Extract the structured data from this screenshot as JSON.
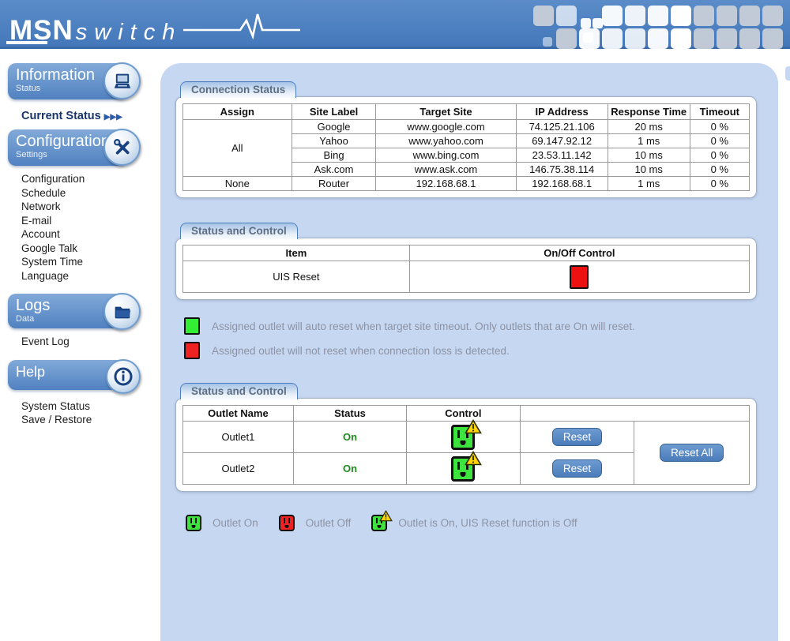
{
  "banner": {
    "logo_bold": "MSN",
    "logo_italic": "switch"
  },
  "sidebar": {
    "information": {
      "title": "Information",
      "subtitle": "Status"
    },
    "current_status_link": "Current Status",
    "current_status_arrows": "▶▶▶",
    "configuration": {
      "title": "Configuration",
      "subtitle": "Settings"
    },
    "config_links": [
      "Configuration",
      "Schedule",
      "Network",
      "E-mail",
      "Account",
      "Google Talk",
      "System Time",
      "Language"
    ],
    "logs": {
      "title": "Logs",
      "subtitle": "Data"
    },
    "logs_links": [
      "Event Log"
    ],
    "help": {
      "title": "Help"
    },
    "help_links": [
      "System Status",
      "Save / Restore"
    ]
  },
  "connection": {
    "tab_label": "Connection Status",
    "headers": [
      "Assign",
      "Site Label",
      "Target Site",
      "IP Address",
      "Response Time",
      "Timeout"
    ],
    "assign_all": "All",
    "assign_none": "None",
    "rows": [
      {
        "site_label": "Google",
        "target": "www.google.com",
        "ip": "74.125.21.106",
        "response": "20 ms",
        "timeout": "0 %"
      },
      {
        "site_label": "Yahoo",
        "target": "www.yahoo.com",
        "ip": "69.147.92.12",
        "response": "1 ms",
        "timeout": "0 %"
      },
      {
        "site_label": "Bing",
        "target": "www.bing.com",
        "ip": "23.53.11.142",
        "response": "10 ms",
        "timeout": "0 %"
      },
      {
        "site_label": "Ask.com",
        "target": "www.ask.com",
        "ip": "146.75.38.114",
        "response": "10 ms",
        "timeout": "0 %"
      },
      {
        "site_label": "Router",
        "target": "192.168.68.1",
        "ip": "192.168.68.1",
        "response": "1 ms",
        "timeout": "0 %"
      }
    ]
  },
  "uis": {
    "tab_label": "Status and Control",
    "headers": [
      "Item",
      "On/Off Control"
    ],
    "item": "UIS Reset"
  },
  "legend_reset": [
    {
      "icon": "green-square",
      "text": "Assigned outlet will auto reset when target site timeout. Only outlets that are On will reset."
    },
    {
      "icon": "red-square",
      "text": "Assigned outlet will not reset when connection loss is detected."
    }
  ],
  "outlets": {
    "tab_label": "Status and Control",
    "headers": [
      "Outlet Name",
      "Status",
      "Control"
    ],
    "rows": [
      {
        "name": "Outlet1",
        "status": "On"
      },
      {
        "name": "Outlet2",
        "status": "On"
      }
    ],
    "reset_label": "Reset",
    "reset_all_label": "Reset All"
  },
  "legend_outlets": [
    {
      "icon": "outlet-green",
      "text": "Outlet On"
    },
    {
      "icon": "outlet-red",
      "text": "Outlet Off"
    },
    {
      "icon": "outlet-green-warning",
      "text": "Outlet is On, UIS Reset function is Off"
    }
  ],
  "colors": {
    "banner_blue": "#4a7fc1",
    "panel_blue": "#c6d7f2",
    "accent_blue": "#4a7cba",
    "on_green": "#1f8b1f",
    "outlet_green": "#3ee43e",
    "off_red": "#ee1111",
    "warning_yellow": "#ffd400",
    "legend_gray": "#8d93a3"
  }
}
